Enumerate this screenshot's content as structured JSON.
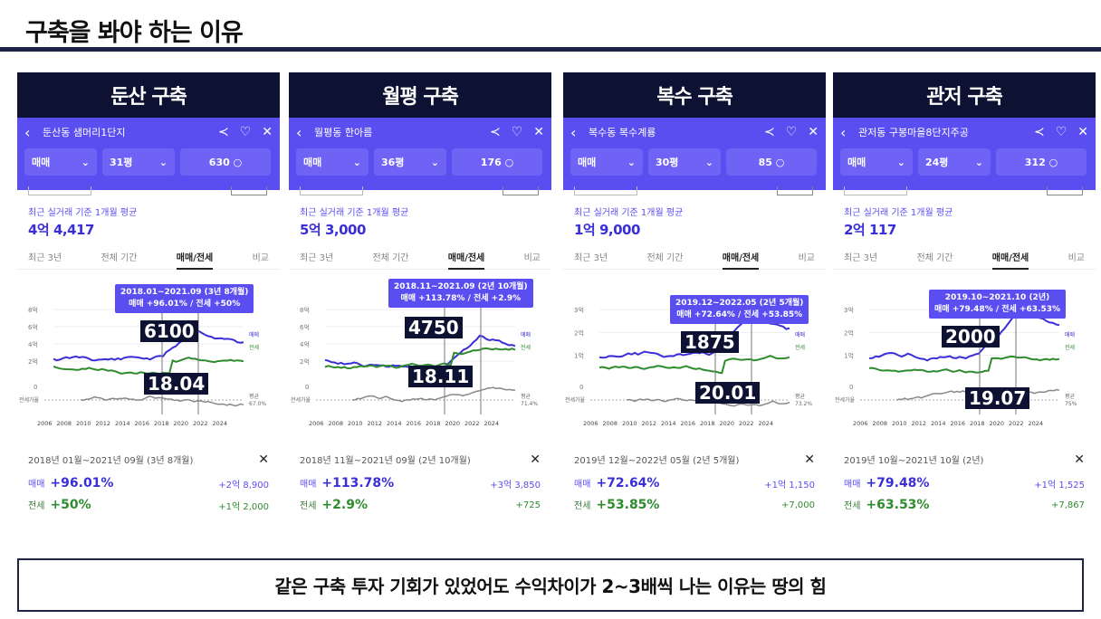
{
  "page_title": "구축을 봐야 하는 이유",
  "footer_text": "같은 구축 투자 기회가 있었어도 수익차이가 2~3배씩 나는 이유는 땅의 힘",
  "colors": {
    "accent": "#5b4ef0",
    "header": "#0d1233",
    "sale": "#3a2fd6",
    "lease": "#2e8b2e"
  },
  "common": {
    "subtitle": "최근 실거래 기준 1개월 평균",
    "tabs": [
      "최근 3년",
      "전체 기간",
      "매매/전세",
      "비교"
    ],
    "sale_label": "매매",
    "lease_label": "전세",
    "legend_sale": "매매",
    "legend_lease": "전세",
    "lease_ratio_label": "전세가율",
    "avg_label": "평균",
    "x_ticks": [
      "2006",
      "2008",
      "2010",
      "2012",
      "2014",
      "2016",
      "2018",
      "2020",
      "2022",
      "2024"
    ]
  },
  "panels": [
    {
      "header": "둔산 구축",
      "apt_name": "둔산동 샘머리1단지",
      "deal_type": "매매",
      "size": "31평",
      "households": "630",
      "price": "4억 4,417",
      "tooltip_range": "2018.01~2021.09 (3년 8개월)",
      "tooltip_detail": "매매 +96.01%  /  전세 +50%",
      "tag_top": "6100",
      "tag_bottom": "18.04",
      "y_ticks": [
        "8억",
        "6억",
        "4억",
        "2억"
      ],
      "avg_value": "67.0%",
      "range_text": "2018년 01월~2021년 09월 (3년 8개월)",
      "sale_pct": "+96.01%",
      "sale_amt": "+2억 8,900",
      "lease_pct": "+50%",
      "lease_amt": "+1억 2,000"
    },
    {
      "header": "월평 구축",
      "apt_name": "월평동 한아름",
      "deal_type": "매매",
      "size": "36평",
      "households": "176",
      "price": "5억 3,000",
      "tooltip_range": "2018.11~2021.09 (2년 10개월)",
      "tooltip_detail": "매매 +113.78%  /  전세 +2.9%",
      "tag_top": "4750",
      "tag_bottom": "18.11",
      "y_ticks": [
        "8억",
        "6억",
        "4억",
        "2억"
      ],
      "avg_value": "71.4%",
      "range_text": "2018년 11월~2021년 09월 (2년 10개월)",
      "sale_pct": "+113.78%",
      "sale_amt": "+3억 3,850",
      "lease_pct": "+2.9%",
      "lease_amt": "+725"
    },
    {
      "header": "복수 구축",
      "apt_name": "복수동 복수계룡",
      "deal_type": "매매",
      "size": "30평",
      "households": "85",
      "price": "1억 9,000",
      "tooltip_range": "2019.12~2022.05 (2년 5개월)",
      "tooltip_detail": "매매 +72.64%  /  전세 +53.85%",
      "tag_top": "1875",
      "tag_bottom": "20.01",
      "y_ticks": [
        "3억",
        "2억",
        "1억"
      ],
      "avg_value": "73.2%",
      "range_text": "2019년 12월~2022년 05월 (2년 5개월)",
      "sale_pct": "+72.64%",
      "sale_amt": "+1억 1,150",
      "lease_pct": "+53.85%",
      "lease_amt": "+7,000"
    },
    {
      "header": "관저 구축",
      "apt_name": "관저동 구봉마을8단지주공",
      "deal_type": "매매",
      "size": "24평",
      "households": "312",
      "price": "2억 117",
      "tooltip_range": "2019.10~2021.10 (2년)",
      "tooltip_detail": "매매 +79.48%  /  전세 +63.53%",
      "tag_top": "2000",
      "tag_bottom": "19.07",
      "y_ticks": [
        "3억",
        "2억",
        "1억"
      ],
      "avg_value": "75%",
      "range_text": "2019년 10월~2021년 10월 (2년)",
      "sale_pct": "+79.48%",
      "sale_amt": "+1억 1,525",
      "lease_pct": "+63.53%",
      "lease_amt": "+7,867"
    }
  ]
}
